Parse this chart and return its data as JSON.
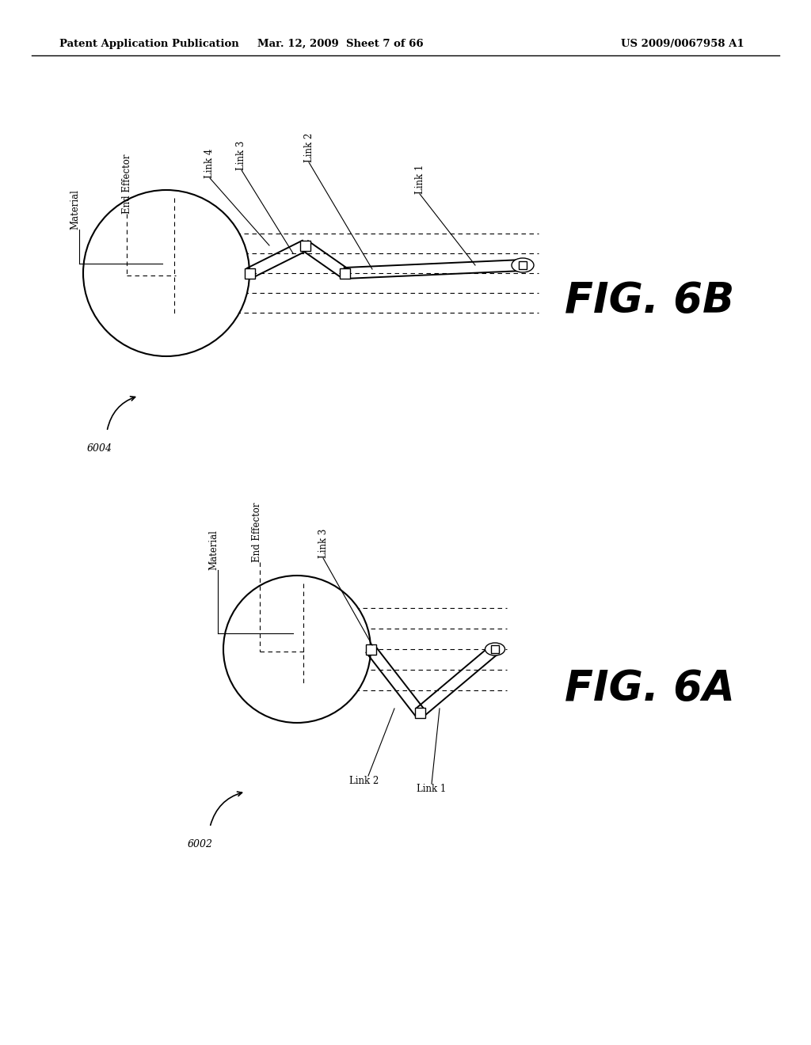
{
  "bg_color": "#ffffff",
  "header_left": "Patent Application Publication",
  "header_mid": "Mar. 12, 2009  Sheet 7 of 66",
  "header_right": "US 2009/0067958 A1",
  "fig_label_6B": "FIG. 6B",
  "fig_label_6A": "FIG. 6A",
  "ref_6004": "6004",
  "ref_6002": "6002"
}
